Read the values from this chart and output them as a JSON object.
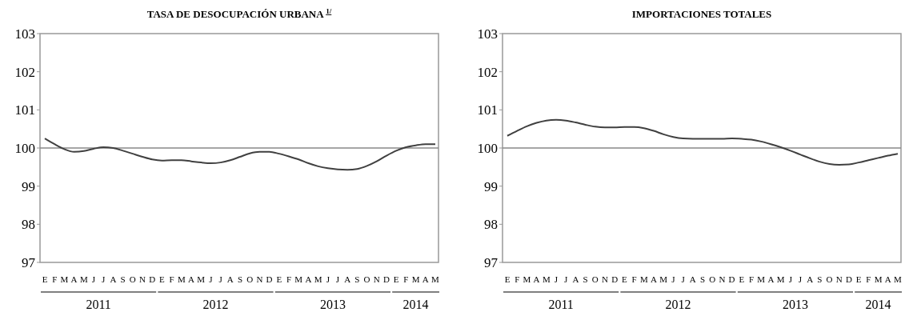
{
  "chart_data": [
    {
      "type": "line",
      "title": "TASA DE DESOCUPACIÓN URBANA $^{1/}$",
      "categories": [
        "E",
        "F",
        "M",
        "A",
        "M",
        "J",
        "J",
        "A",
        "S",
        "O",
        "N",
        "D",
        "E",
        "F",
        "M",
        "A",
        "M",
        "J",
        "J",
        "A",
        "S",
        "O",
        "N",
        "D",
        "E",
        "F",
        "M",
        "A",
        "M",
        "J",
        "J",
        "A",
        "S",
        "O",
        "N",
        "D",
        "E",
        "F",
        "M",
        "A",
        "M"
      ],
      "series": [
        {
          "color": "#404040",
          "values": [
            100.25,
            100.1,
            99.97,
            99.9,
            99.92,
            99.98,
            100.02,
            100.0,
            99.93,
            99.85,
            99.77,
            99.7,
            99.67,
            99.68,
            99.68,
            99.65,
            99.62,
            99.6,
            99.62,
            99.68,
            99.77,
            99.86,
            99.9,
            99.9,
            99.85,
            99.78,
            99.7,
            99.6,
            99.52,
            99.47,
            99.44,
            99.43,
            99.45,
            99.53,
            99.65,
            99.8,
            99.93,
            100.02,
            100.07,
            100.1,
            100.1
          ]
        }
      ],
      "ylim": [
        97,
        103
      ],
      "yticks": [
        97,
        98,
        99,
        100,
        101,
        102,
        103
      ],
      "ref_lines": [
        {
          "axis": "y",
          "value": 100,
          "color": "#888888"
        }
      ],
      "annotations": [
        "2011",
        "2012",
        "2013",
        "2014"
      ],
      "grid": false,
      "line_style": "solid"
    },
    {
      "type": "line",
      "title": "IMPORTACIONES TOTALES",
      "categories": [
        "E",
        "F",
        "M",
        "A",
        "M",
        "J",
        "J",
        "A",
        "S",
        "O",
        "N",
        "D",
        "E",
        "F",
        "M",
        "A",
        "M",
        "J",
        "J",
        "A",
        "S",
        "O",
        "N",
        "D",
        "E",
        "F",
        "M",
        "A",
        "M",
        "J",
        "J",
        "A",
        "S",
        "O",
        "N",
        "D",
        "E",
        "F",
        "M",
        "A",
        "M"
      ],
      "series": [
        {
          "color": "#404040",
          "values": [
            100.32,
            100.45,
            100.57,
            100.66,
            100.72,
            100.74,
            100.72,
            100.67,
            100.61,
            100.56,
            100.54,
            100.54,
            100.55,
            100.55,
            100.52,
            100.45,
            100.36,
            100.29,
            100.25,
            100.24,
            100.24,
            100.24,
            100.24,
            100.25,
            100.24,
            100.22,
            100.17,
            100.1,
            100.02,
            99.93,
            99.83,
            99.73,
            99.64,
            99.58,
            99.56,
            99.57,
            99.62,
            99.68,
            99.74,
            99.8,
            99.85
          ]
        }
      ],
      "ylim": [
        97,
        103
      ],
      "yticks": [
        97,
        98,
        99,
        100,
        101,
        102,
        103
      ],
      "ref_lines": [
        {
          "axis": "y",
          "value": 100,
          "color": "#888888"
        }
      ],
      "annotations": [
        "2011",
        "2012",
        "2013",
        "2014"
      ],
      "grid": false,
      "line_style": "solid"
    }
  ]
}
